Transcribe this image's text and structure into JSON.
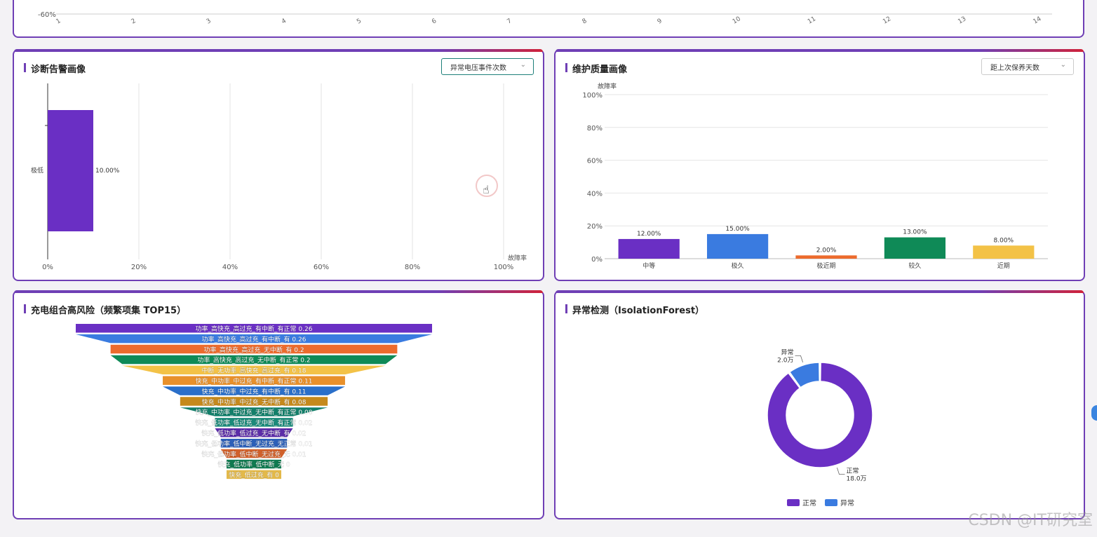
{
  "top_chart": {
    "y_tick": "-60%",
    "x_ticks": [
      "1",
      "2",
      "3",
      "4",
      "5",
      "6",
      "7",
      "8",
      "9",
      "10",
      "11",
      "12",
      "13",
      "14"
    ]
  },
  "diag_panel": {
    "title": "诊断告警画像",
    "select_value": "异常电压事件次数",
    "chevron_icon": "chevron-down-icon"
  },
  "maint_panel": {
    "title": "维护质量画像",
    "select_value": "距上次保养天数",
    "chevron_icon": "chevron-down-icon"
  },
  "funnel_panel": {
    "title": "充电组合高风险（频繁项集 TOP15）"
  },
  "anomaly_panel": {
    "title": "异常检测（IsolationForest）"
  },
  "watermark": "CSDN @IT研究室",
  "chart_data": [
    {
      "id": "diag",
      "type": "bar",
      "orientation": "horizontal",
      "categories": [
        "极低"
      ],
      "values": [
        10.0
      ],
      "data_labels": [
        "10.00%"
      ],
      "xlim": [
        0,
        100
      ],
      "x_ticks": [
        "0%",
        "20%",
        "40%",
        "60%",
        "80%",
        "100%"
      ],
      "xlabel": "故障率",
      "colors": [
        "#6a2fc4"
      ]
    },
    {
      "id": "maint",
      "type": "bar",
      "categories": [
        "中等",
        "极久",
        "极近期",
        "较久",
        "近期"
      ],
      "values": [
        12.0,
        15.0,
        2.0,
        13.0,
        8.0
      ],
      "data_labels": [
        "12.00%",
        "15.00%",
        "2.00%",
        "13.00%",
        "8.00%"
      ],
      "ylim": [
        0,
        100
      ],
      "y_ticks": [
        "0%",
        "20%",
        "40%",
        "60%",
        "80%",
        "100%"
      ],
      "ylabel": "故障率",
      "colors": [
        "#6a2fc4",
        "#3a7be0",
        "#ec6b2d",
        "#0f8a57",
        "#f3c247"
      ]
    },
    {
      "id": "funnel",
      "type": "funnel",
      "items": [
        {
          "label": "功率_高快充_高过充_有中断_有正常 0.26",
          "value": 0.26,
          "color": "#6a2fc4"
        },
        {
          "label": "功率_高快充_高过充_有中断_有 0.26",
          "value": 0.26,
          "color": "#3a7be0"
        },
        {
          "label": "功率_高快充_高过充_无中断_有 0.2",
          "value": 0.2,
          "color": "#ec6b2d"
        },
        {
          "label": "功率_高快充_高过充_无中断_有正常 0.2",
          "value": 0.2,
          "color": "#0f8a57"
        },
        {
          "label": "中断_无功率_高快充_高过充_有 0.18",
          "value": 0.18,
          "color": "#f3c247"
        },
        {
          "label": "快充_中功率_中过充_有中断_有正常 0.11",
          "value": 0.11,
          "color": "#e8902b"
        },
        {
          "label": "快充_中功率_中过充_有中断_有 0.11",
          "value": 0.11,
          "color": "#2a6fc9"
        },
        {
          "label": "快充_中功率_中过充_无中断_有 0.08",
          "value": 0.08,
          "color": "#c5891c"
        },
        {
          "label": "快充_中功率_中过充_无中断_有正常 0.08",
          "value": 0.08,
          "color": "#137f6a"
        },
        {
          "label": "快充_低功率_低过充_无中断_有正常 0.02",
          "value": 0.02,
          "color": "#1b8a7a"
        },
        {
          "label": "快充_低功率_低过充_无中断_有 0.02",
          "value": 0.02,
          "color": "#5b2ca8"
        },
        {
          "label": "快充_低功率_低中断_无过充_无正常 0.01",
          "value": 0.01,
          "color": "#2c5fb8"
        },
        {
          "label": "快充_低功率_低中断_无过充_无 0.01",
          "value": 0.01,
          "color": "#d0602a"
        },
        {
          "label": "快充_低功率_低中断_无 0",
          "value": 0,
          "color": "#0f7a50"
        },
        {
          "label": "快充_低过充_有 0",
          "value": 0,
          "color": "#e3b94a"
        }
      ]
    },
    {
      "id": "anomaly",
      "type": "pie",
      "donut": true,
      "slices": [
        {
          "name": "正常",
          "value": 18.0,
          "label": "18.0万",
          "color": "#6a2fc4"
        },
        {
          "name": "异常",
          "value": 2.0,
          "label": "2.0万",
          "color": "#3a7be0"
        }
      ],
      "legend": [
        "正常",
        "异常"
      ],
      "legend_position": "bottom"
    }
  ]
}
